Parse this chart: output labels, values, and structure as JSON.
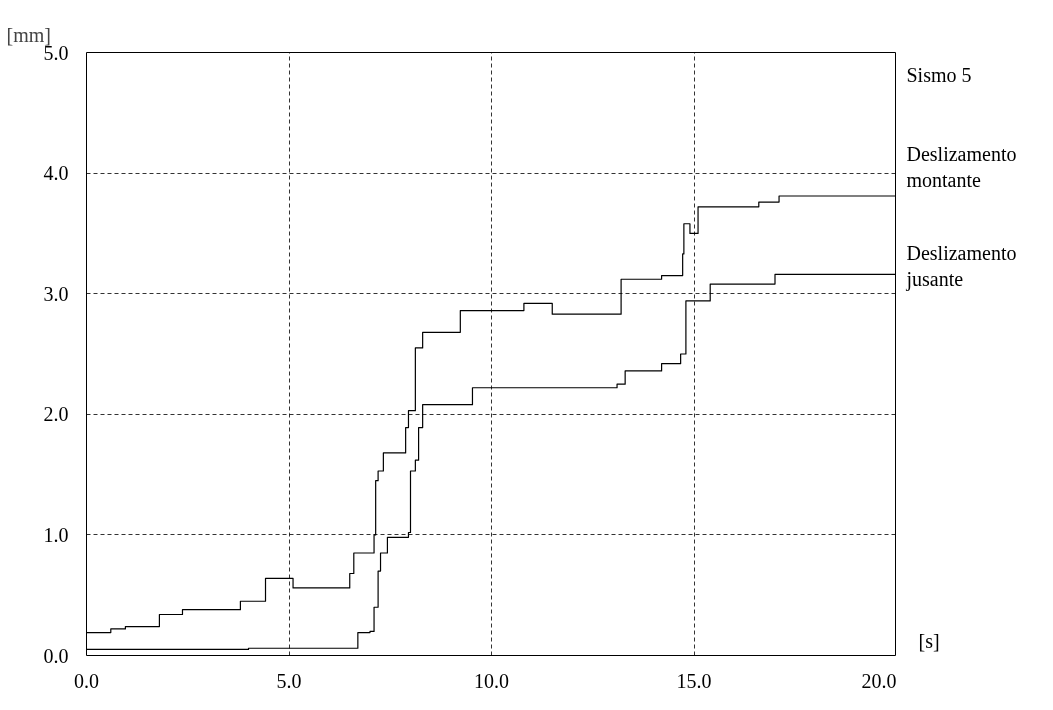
{
  "chart_data": {
    "type": "step",
    "xlabel": "[s]",
    "ylabel": "[mm]",
    "annotations": [
      "Sismo 5"
    ],
    "xlim": [
      0,
      20
    ],
    "ylim": [
      0,
      5
    ],
    "xticks": [
      {
        "value": 0,
        "label": "0.0"
      },
      {
        "value": 5,
        "label": "5.0"
      },
      {
        "value": 10,
        "label": "10.0"
      },
      {
        "value": 15,
        "label": "15.0"
      },
      {
        "value": 20,
        "label": "20.0"
      }
    ],
    "yticks": [
      {
        "value": 0,
        "label": "0.0"
      },
      {
        "value": 1,
        "label": "1.0"
      },
      {
        "value": 2,
        "label": "2.0"
      },
      {
        "value": 3,
        "label": "3.0"
      },
      {
        "value": 4,
        "label": "4.0"
      },
      {
        "value": 5,
        "label": "5.0"
      }
    ],
    "grid": true,
    "marker": "none",
    "line_style": "solid",
    "series": [
      {
        "name": "Deslizamento\nmontante",
        "color": "#000000",
        "x": [
          0,
          0.6,
          0.96,
          1.8,
          2.37,
          3.8,
          4.42,
          5.1,
          6.5,
          6.6,
          7.1,
          7.14,
          7.2,
          7.33,
          7.88,
          7.95,
          8.12,
          8.3,
          9.23,
          10.8,
          11.5,
          13.2,
          14.2,
          14.72,
          14.75,
          14.9,
          15.1,
          16.6,
          17.1,
          20
        ],
        "values": [
          0.19,
          0.22,
          0.24,
          0.34,
          0.38,
          0.45,
          0.64,
          0.56,
          0.68,
          0.85,
          1.0,
          1.45,
          1.53,
          1.68,
          1.89,
          2.03,
          2.55,
          2.68,
          2.86,
          2.92,
          2.83,
          3.12,
          3.15,
          3.33,
          3.58,
          3.5,
          3.72,
          3.76,
          3.81,
          3.81
        ]
      },
      {
        "name": "Deslizamento\njusante",
        "color": "#000000",
        "x": [
          0,
          4,
          6.6,
          6.7,
          7.0,
          7.1,
          7.2,
          7.26,
          7.43,
          7.95,
          8.0,
          8.12,
          8.2,
          8.3,
          9.53,
          13.1,
          13.3,
          14.2,
          14.67,
          14.8,
          15.4,
          17.0,
          20
        ],
        "values": [
          0.05,
          0.06,
          0.06,
          0.19,
          0.2,
          0.4,
          0.7,
          0.85,
          0.98,
          1.02,
          1.53,
          1.62,
          1.89,
          2.08,
          2.22,
          2.25,
          2.36,
          2.42,
          2.5,
          2.94,
          3.08,
          3.16,
          3.16
        ]
      }
    ]
  }
}
